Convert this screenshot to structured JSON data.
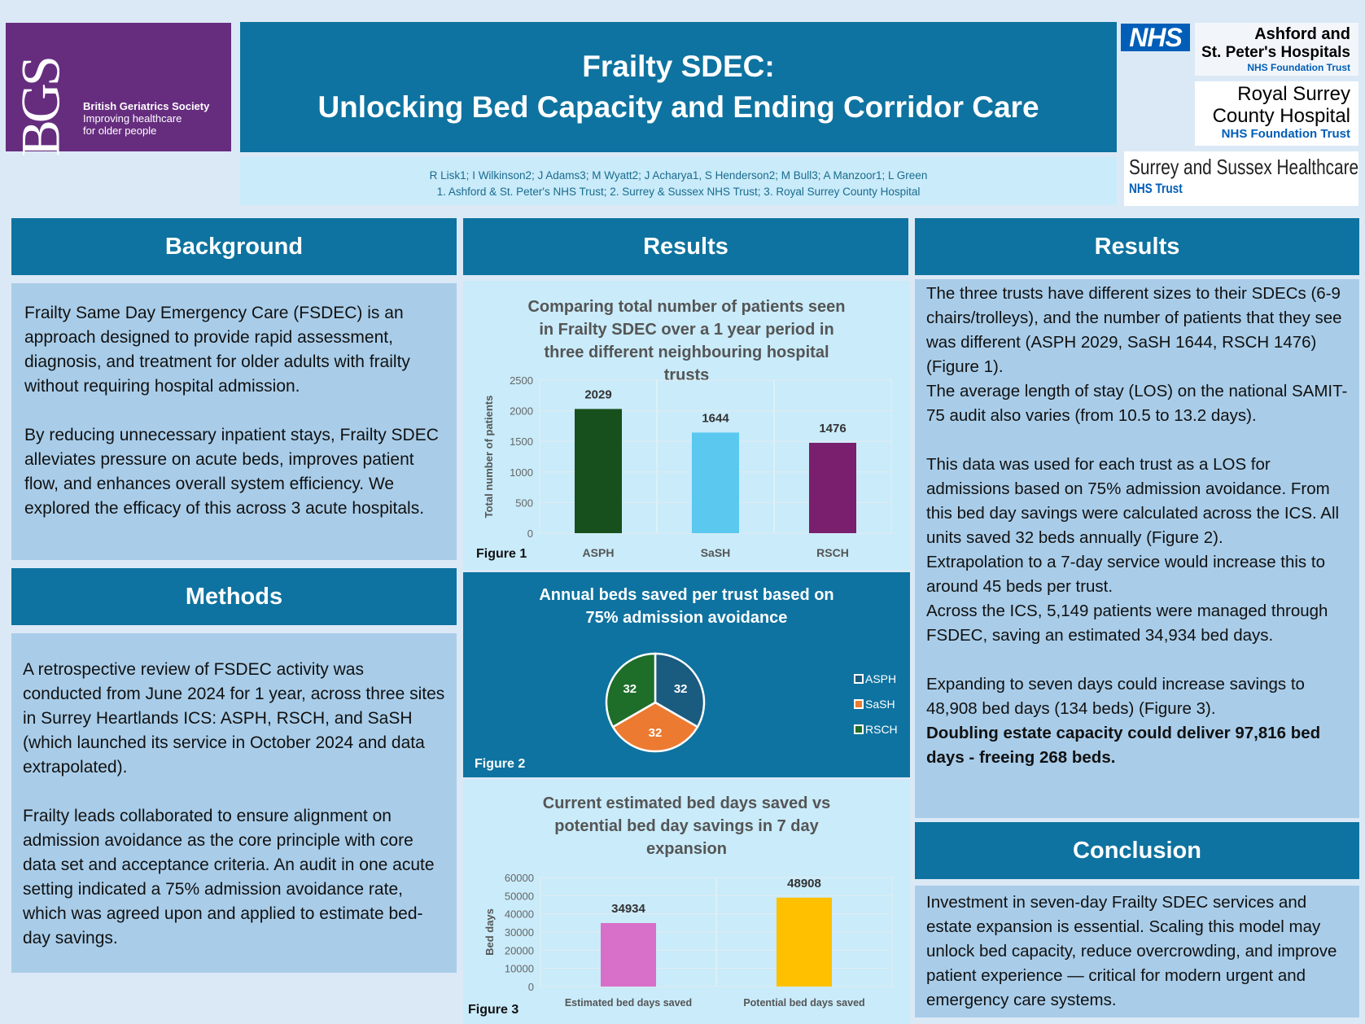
{
  "logos": {
    "bgs": {
      "monogram": "BGS",
      "name": "British Geriatrics Society",
      "tagline1": "Improving healthcare",
      "tagline2": "for older people"
    },
    "nhs": "NHS",
    "ashford": {
      "line1": "Ashford and",
      "line2": "St. Peter's Hospitals",
      "sub": "NHS Foundation Trust"
    },
    "royal_surrey": {
      "line1": "Royal Surrey",
      "line2": "County Hospital",
      "sub": "NHS Foundation Trust"
    },
    "sash": {
      "line1": "Surrey and Sussex Healthcare",
      "sub": "NHS Trust"
    }
  },
  "title": {
    "line1": "Frailty SDEC:",
    "line2": "Unlocking Bed Capacity and Ending Corridor Care"
  },
  "authors": {
    "names": "R Lisk1; I Wilkinson2; J Adams3; M Wyatt2; J Acharya1, S Henderson2; M Bull3; A Manzoor1; L Green",
    "affiliations": "1. Ashford & St. Peter's NHS Trust; 2. Surrey & Sussex NHS Trust; 3. Royal Surrey County Hospital"
  },
  "background": {
    "heading": "Background",
    "p1": "Frailty Same Day Emergency Care (FSDEC) is an approach designed to provide rapid assessment, diagnosis, and treatment for older adults with frailty without requiring hospital admission.",
    "p2": "By reducing unnecessary inpatient stays, Frailty SDEC alleviates pressure on acute beds, improves patient flow, and enhances overall system efficiency. We explored the efficacy of this across 3 acute hospitals."
  },
  "methods": {
    "heading": "Methods",
    "p1": "A retrospective review of FSDEC activity was conducted from June 2024 for 1 year, across three sites in Surrey Heartlands ICS: ASPH, RSCH, and SaSH (which launched its service in October 2024 and data extrapolated).",
    "p2": "Frailty leads collaborated to ensure alignment on admission avoidance as the core principle with core data set and acceptance criteria. An audit in one acute setting indicated a 75% admission avoidance rate, which was agreed upon and applied to estimate bed-day savings."
  },
  "results_mid": {
    "heading": "Results"
  },
  "results_right": {
    "heading": "Results",
    "p1": "The three trusts have different sizes to their SDECs (6-9 chairs/trolleys), and the number of patients that they see was different (ASPH 2029, SaSH 1644, RSCH 1476) (Figure 1).",
    "p2": "The average length of stay (LOS) on the national SAMIT-75 audit also varies (from 10.5 to 13.2 days).",
    "p3": "This data was used for each trust as a LOS for admissions based on 75% admission avoidance. From this bed day savings were calculated across the ICS. All units saved 32 beds annually (Figure 2).",
    "p4": "Extrapolation to a 7-day service would increase this to around 45 beds per trust.",
    "p5": "Across the ICS, 5,149 patients were managed through FSDEC, saving an estimated 34,934 bed days.",
    "p6": "Expanding to seven days could increase savings to 48,908 bed days (134 beds) (Figure 3).",
    "p7": "Doubling estate capacity could deliver 97,816 bed days - freeing 268 beds."
  },
  "conclusion": {
    "heading": "Conclusion",
    "p1": "Investment in seven-day Frailty SDEC services and estate expansion is essential. Scaling this model may unlock bed capacity, reduce overcrowding, and improve patient experience — critical for modern urgent and emergency care systems."
  },
  "chart_data": [
    {
      "type": "bar",
      "figure_label": "Figure 1",
      "title": "Comparing total number of patients seen in Frailty SDEC over a 1 year period in three different neighbouring hospital trusts",
      "ylabel": "Total number of patients",
      "xlabel": "",
      "ylim": [
        0,
        2500
      ],
      "yticks": [
        0,
        500,
        1000,
        1500,
        2000,
        2500
      ],
      "grid": true,
      "categories": [
        "ASPH",
        "SaSH",
        "RSCH"
      ],
      "values": [
        2029,
        1644,
        1476
      ],
      "colors": [
        "#17501c",
        "#5bc8f0",
        "#7a1f6e"
      ]
    },
    {
      "type": "pie",
      "figure_label": "Figure 2",
      "title": "Annual beds saved per trust based on 75% admission avoidance",
      "legend": "right",
      "categories": [
        "ASPH",
        "SaSH",
        "RSCH"
      ],
      "values": [
        32,
        32,
        32
      ],
      "colors": [
        "#1a5b80",
        "#ec7a30",
        "#1e6e2a"
      ]
    },
    {
      "type": "bar",
      "figure_label": "Figure 3",
      "title": "Current estimated bed days saved vs potential bed day savings in 7 day expansion",
      "ylabel": "Bed days",
      "xlabel": "",
      "ylim": [
        0,
        60000
      ],
      "yticks": [
        0,
        10000,
        20000,
        30000,
        40000,
        50000,
        60000
      ],
      "grid": true,
      "categories": [
        "Estimated bed days saved",
        "Potential bed days saved"
      ],
      "values": [
        34934,
        48908
      ],
      "colors": [
        "#d86fc8",
        "#ffc000"
      ]
    }
  ]
}
